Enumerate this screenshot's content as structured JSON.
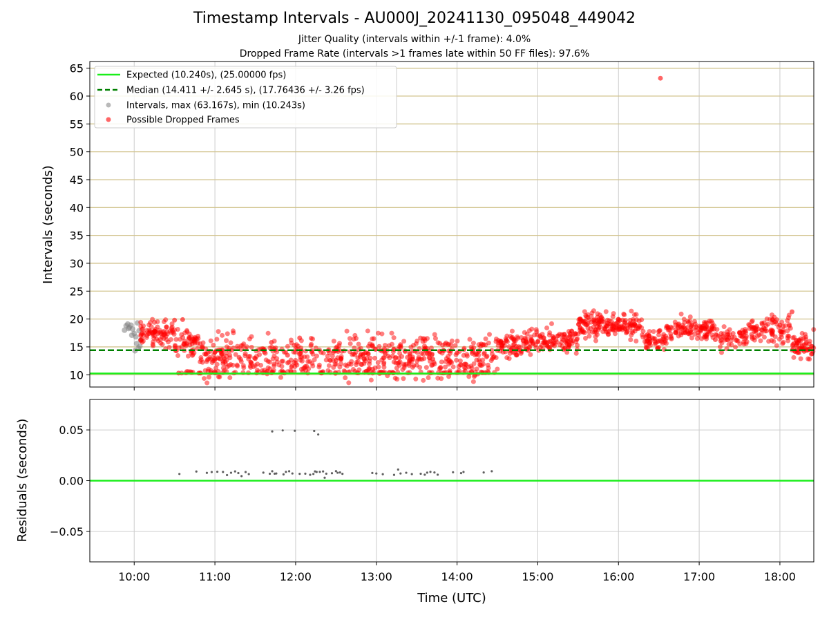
{
  "chart_data": [
    {
      "type": "scatter",
      "title": "Timestamp Intervals - AU000J_20241130_095048_449042",
      "subtitle_lines": [
        "Jitter Quality (intervals within +/-1 frame): 4.0%",
        "Dropped Frame Rate (intervals >1 frames late within 50 FF files): 97.6%"
      ],
      "xlabel": "",
      "ylabel": "Intervals (seconds)",
      "x_unit": "hours UTC",
      "xlim": [
        9.45,
        18.42
      ],
      "ylim": [
        7.8,
        66.2
      ],
      "yticks": [
        10,
        15,
        20,
        25,
        30,
        35,
        40,
        45,
        50,
        55,
        60,
        65
      ],
      "grid": true,
      "hlines": [
        {
          "name": "Expected (10.240s), (25.00000 fps)",
          "y": 10.24,
          "color": "#1aee1a",
          "style": "solid"
        },
        {
          "name": "Median (14.411 +/- 2.645 s), (17.76436 +/- 3.26 fps)",
          "y": 14.41,
          "color": "#008000",
          "style": "dashed"
        }
      ],
      "legend": {
        "placement": "upper-left",
        "entries": [
          "Expected (10.240s), (25.00000 fps)",
          "Median (14.411 +/- 2.645 s), (17.76436 +/- 3.26 fps)",
          "Intervals, max (63.167s), min (10.243s)",
          "Possible Dropped Frames"
        ]
      },
      "series": [
        {
          "name": "Intervals, max (63.167s), min (10.243s)",
          "color": "#808080",
          "points": [
            [
              9.88,
              18.0
            ],
            [
              9.9,
              18.8
            ],
            [
              9.92,
              19.1
            ],
            [
              9.94,
              18.5
            ],
            [
              9.96,
              18.9
            ],
            [
              9.98,
              18.2
            ],
            [
              10.0,
              17.4
            ],
            [
              10.02,
              16.8
            ],
            [
              10.03,
              15.6
            ],
            [
              10.05,
              14.8
            ],
            [
              10.04,
              19.3
            ],
            [
              10.06,
              17.9
            ],
            [
              10.07,
              15.1
            ],
            [
              10.01,
              14.3
            ],
            [
              9.97,
              17.1
            ],
            [
              9.93,
              18.3
            ],
            [
              10.08,
              16.2
            ]
          ]
        },
        {
          "name": "Possible Dropped Frames",
          "color": "#ff0000",
          "note": "dense band of points from ~10:05 to 18:25; representative samples listed",
          "points": [
            [
              10.1,
              17.4
            ],
            [
              10.25,
              17.9
            ],
            [
              10.4,
              18.6
            ],
            [
              10.5,
              19.8
            ],
            [
              10.55,
              10.3
            ],
            [
              10.6,
              19.9
            ],
            [
              10.75,
              16.2
            ],
            [
              10.8,
              10.3
            ],
            [
              10.95,
              10.4
            ],
            [
              11.1,
              12.4
            ],
            [
              11.3,
              13.1
            ],
            [
              11.5,
              12.9
            ],
            [
              11.7,
              15.8
            ],
            [
              11.9,
              13.5
            ],
            [
              12.05,
              16.6
            ],
            [
              12.2,
              14.1
            ],
            [
              12.5,
              12.6
            ],
            [
              12.9,
              13.7
            ],
            [
              13.3,
              15.4
            ],
            [
              13.7,
              12.8
            ],
            [
              14.0,
              13.9
            ],
            [
              14.3,
              15.5
            ],
            [
              14.55,
              14.8
            ],
            [
              14.7,
              16.4
            ],
            [
              15.0,
              15.9
            ],
            [
              15.3,
              17.2
            ],
            [
              15.55,
              18.1
            ],
            [
              15.8,
              19.6
            ],
            [
              16.0,
              19.9
            ],
            [
              16.2,
              19.1
            ],
            [
              16.35,
              16.0
            ],
            [
              16.52,
              63.2
            ],
            [
              16.6,
              18.7
            ],
            [
              16.9,
              17.6
            ],
            [
              17.2,
              16.3
            ],
            [
              17.5,
              17.6
            ],
            [
              17.8,
              18.4
            ],
            [
              18.0,
              18.9
            ],
            [
              18.15,
              21.3
            ],
            [
              18.3,
              14.2
            ],
            [
              18.4,
              13.8
            ]
          ]
        }
      ],
      "annotations_color": "#d2c48f"
    },
    {
      "type": "scatter",
      "title": "",
      "xlabel": "Time (UTC)",
      "ylabel": "Residuals (seconds)",
      "xlim": [
        9.45,
        18.42
      ],
      "ylim": [
        -0.08,
        0.08
      ],
      "yticks": [
        0.05,
        0.0,
        -0.05
      ],
      "ytick_labels": [
        "0.05",
        "0.00",
        "−0.05"
      ],
      "xticks": [
        10,
        11,
        12,
        13,
        14,
        15,
        16,
        17,
        18
      ],
      "xtick_labels": [
        "10:00",
        "11:00",
        "12:00",
        "13:00",
        "14:00",
        "15:00",
        "16:00",
        "17:00",
        "18:00"
      ],
      "grid": true,
      "hlines": [
        {
          "y": 0.0,
          "color": "#1aee1a",
          "style": "solid"
        }
      ],
      "series": [
        {
          "name": "",
          "color": "#606060",
          "points": [
            [
              10.56,
              0.0066
            ],
            [
              10.77,
              0.009
            ],
            [
              10.9,
              0.0077
            ],
            [
              10.96,
              0.0085
            ],
            [
              11.03,
              0.0088
            ],
            [
              11.1,
              0.0086
            ],
            [
              11.15,
              0.0055
            ],
            [
              11.2,
              0.0078
            ],
            [
              11.25,
              0.0091
            ],
            [
              11.29,
              0.0075
            ],
            [
              11.33,
              0.0045
            ],
            [
              11.38,
              0.0085
            ],
            [
              11.42,
              0.0065
            ],
            [
              11.6,
              0.0079
            ],
            [
              11.68,
              0.0068
            ],
            [
              11.71,
              0.0093
            ],
            [
              11.74,
              0.0069
            ],
            [
              11.76,
              0.0071
            ],
            [
              11.85,
              0.0062
            ],
            [
              11.88,
              0.0087
            ],
            [
              11.92,
              0.0093
            ],
            [
              11.96,
              0.0071
            ],
            [
              12.05,
              0.0067
            ],
            [
              12.12,
              0.0069
            ],
            [
              12.18,
              0.0058
            ],
            [
              12.22,
              0.0066
            ],
            [
              12.24,
              0.0091
            ],
            [
              12.26,
              0.0086
            ],
            [
              12.3,
              0.0087
            ],
            [
              12.34,
              0.0091
            ],
            [
              12.36,
              0.0029
            ],
            [
              12.38,
              0.0069
            ],
            [
              12.45,
              0.0073
            ],
            [
              12.5,
              0.0094
            ],
            [
              12.52,
              0.0078
            ],
            [
              12.55,
              0.0081
            ],
            [
              12.58,
              0.0067
            ],
            [
              12.95,
              0.0076
            ],
            [
              13.0,
              0.0071
            ],
            [
              13.08,
              0.0064
            ],
            [
              13.22,
              0.0057
            ],
            [
              13.27,
              0.011
            ],
            [
              13.3,
              0.0071
            ],
            [
              13.37,
              0.0078
            ],
            [
              13.44,
              0.0065
            ],
            [
              13.55,
              0.0068
            ],
            [
              13.6,
              0.0059
            ],
            [
              13.63,
              0.0079
            ],
            [
              13.67,
              0.0087
            ],
            [
              13.72,
              0.0081
            ],
            [
              13.76,
              0.0059
            ],
            [
              13.95,
              0.0083
            ],
            [
              14.05,
              0.0074
            ],
            [
              14.08,
              0.0086
            ],
            [
              14.33,
              0.0081
            ],
            [
              14.43,
              0.0093
            ],
            [
              11.71,
              0.0485
            ],
            [
              11.84,
              0.0495
            ],
            [
              11.99,
              0.0492
            ],
            [
              12.23,
              0.049
            ],
            [
              12.28,
              0.0455
            ]
          ]
        }
      ]
    }
  ]
}
